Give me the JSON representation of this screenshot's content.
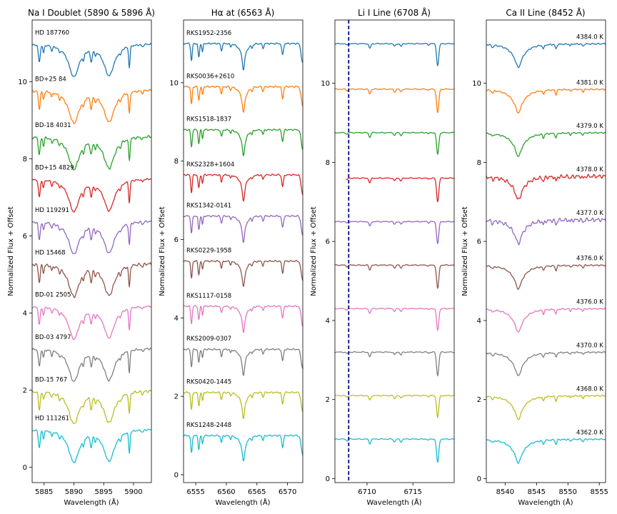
{
  "colors": [
    "#1f77b4",
    "#ff7f0e",
    "#2ca02c",
    "#d62728",
    "#9467bd",
    "#8c564b",
    "#e377c2",
    "#7f7f7f",
    "#bcbd22",
    "#17becf"
  ],
  "ylabel": "Normalized Flux + Offset",
  "chart_data": [
    {
      "type": "line",
      "title": "Na I Doublet (5890 & 5896 Å)",
      "xlabel": "Wavelength (Å)",
      "xlim": [
        5883,
        5903
      ],
      "ylim": [
        -0.4,
        11.6
      ],
      "xticks": [
        5885,
        5890,
        5895,
        5900
      ],
      "yticks": [
        0,
        2,
        4,
        6,
        8,
        10
      ],
      "labels": [
        "HD 187760",
        "BD+25 84",
        "BD-18 4031",
        "BD+15 4829",
        "HD 119291",
        "HD 15468",
        "BD-01 2505",
        "BD-03 4797",
        "BD-15 767",
        "HD 111261"
      ],
      "offsets": [
        10,
        8.8,
        7.6,
        6.5,
        5.4,
        4.3,
        3.2,
        2.1,
        1.0,
        0.0
      ]
    },
    {
      "type": "line",
      "title": "Hα at (6563 Å)",
      "xlabel": "Wavelength (Å)",
      "xlim": [
        6553,
        6572.5
      ],
      "ylim": [
        -0.2,
        11.6
      ],
      "xticks": [
        6555,
        6560,
        6565,
        6570
      ],
      "yticks": [
        0,
        2,
        4,
        6,
        8,
        10
      ],
      "labels": [
        "RKS1952-2356",
        "RKS0036+2610",
        "RKS1518-1837",
        "RKS2328+1604",
        "RKS1342-0141",
        "RKS0229-1958",
        "RKS1117-0158",
        "RKS2009-0307",
        "RKS0420-1445",
        "RKS1248-2448"
      ],
      "offsets": [
        10,
        8.9,
        7.8,
        6.65,
        5.6,
        4.45,
        3.3,
        2.2,
        1.1,
        0.0
      ]
    },
    {
      "type": "line",
      "title": "Li I Line (6708 Å)",
      "xlabel": "Wavelength (Å)",
      "xlim": [
        6706.5,
        6719.5
      ],
      "ylim": [
        -0.1,
        11.6
      ],
      "xticks": [
        6710,
        6715
      ],
      "yticks": [
        0,
        2,
        4,
        6,
        8,
        10
      ],
      "vline": 6708,
      "offsets": [
        10,
        8.85,
        7.75,
        6.6,
        5.5,
        4.4,
        3.3,
        2.2,
        1.1,
        0.0
      ]
    },
    {
      "type": "line",
      "title": "Ca II Line (8452 Å)",
      "xlabel": "Wavelength (Å)",
      "xlim": [
        8537,
        8556
      ],
      "ylim": [
        -0.1,
        11.6
      ],
      "xticks": [
        8540,
        8545,
        8550,
        8555
      ],
      "yticks": [
        0,
        2,
        4,
        6,
        8,
        10
      ],
      "temps": [
        "4384.0 K",
        "4381.0 K",
        "4379.0 K",
        "4378.0 K",
        "4377.0 K",
        "4376.0 K",
        "4376.0 K",
        "4370.0 K",
        "4368.0 K",
        "4362.0 K"
      ],
      "offsets": [
        10,
        8.85,
        7.75,
        6.65,
        5.55,
        4.4,
        3.3,
        2.2,
        1.1,
        0.0
      ]
    }
  ]
}
